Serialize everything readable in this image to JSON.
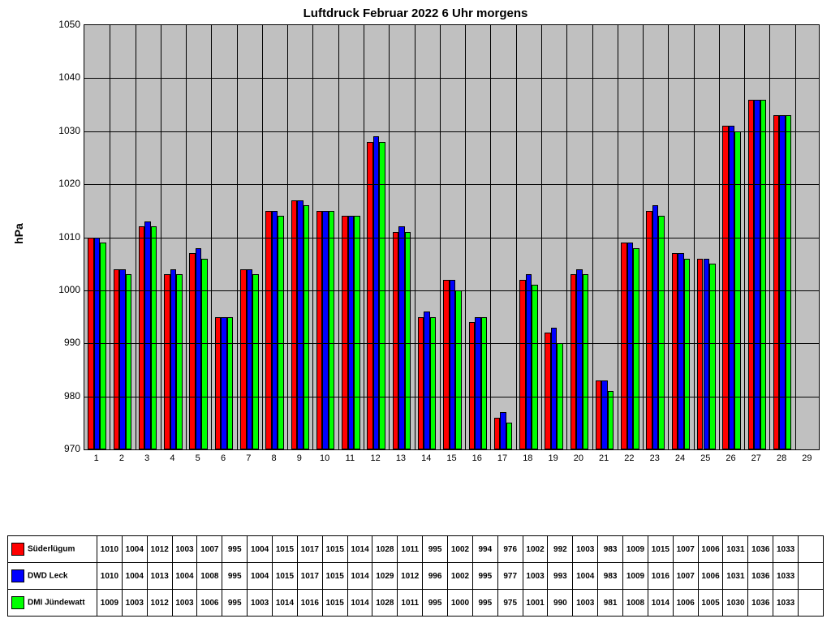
{
  "chart": {
    "type": "bar",
    "title": "Luftdruck Februar 2022 6 Uhr morgens",
    "title_fontsize": 15,
    "ylabel": "hPa",
    "label_fontsize": 14,
    "background_color": "#ffffff",
    "plot_background_color": "#c0c0c0",
    "grid_color": "#000000",
    "border_color": "#000000",
    "ylim": [
      970,
      1050
    ],
    "ytick_step": 10,
    "yticks": [
      970,
      980,
      990,
      1000,
      1010,
      1020,
      1030,
      1040,
      1050
    ],
    "categories": [
      "1",
      "2",
      "3",
      "4",
      "5",
      "6",
      "7",
      "8",
      "9",
      "10",
      "11",
      "12",
      "13",
      "14",
      "15",
      "16",
      "17",
      "18",
      "19",
      "20",
      "21",
      "22",
      "23",
      "24",
      "25",
      "26",
      "27",
      "28",
      "29"
    ],
    "series": [
      {
        "name": "Süderlügum",
        "color": "#ff0000",
        "values": [
          1010,
          1004,
          1012,
          1003,
          1007,
          995,
          1004,
          1015,
          1017,
          1015,
          1014,
          1028,
          1011,
          995,
          1002,
          994,
          976,
          1002,
          992,
          1003,
          983,
          1009,
          1015,
          1007,
          1006,
          1031,
          1036,
          1033,
          null
        ]
      },
      {
        "name": "DWD Leck",
        "color": "#0000ff",
        "values": [
          1010,
          1004,
          1013,
          1004,
          1008,
          995,
          1004,
          1015,
          1017,
          1015,
          1014,
          1029,
          1012,
          996,
          1002,
          995,
          977,
          1003,
          993,
          1004,
          983,
          1009,
          1016,
          1007,
          1006,
          1031,
          1036,
          1033,
          null
        ]
      },
      {
        "name": "DMI Jündewatt",
        "color": "#00ff00",
        "values": [
          1009,
          1003,
          1012,
          1003,
          1006,
          995,
          1003,
          1014,
          1016,
          1015,
          1014,
          1028,
          1011,
          995,
          1000,
          995,
          975,
          1001,
          990,
          1003,
          981,
          1008,
          1014,
          1006,
          1005,
          1030,
          1036,
          1033,
          null
        ]
      }
    ],
    "bar_group_width_ratio": 0.72,
    "tick_fontsize": 12,
    "xtick_fontsize": 11,
    "table_fontsize": 10
  }
}
